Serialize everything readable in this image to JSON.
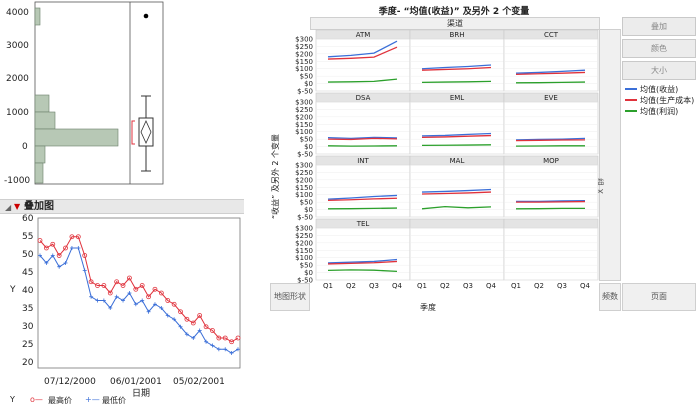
{
  "distribution": {
    "y_ticks": [
      "4000",
      "3000",
      "2000",
      "1000",
      "0",
      "-1000"
    ]
  },
  "outline": {
    "title": "叠加图"
  },
  "overlay": {
    "y_axis_label": "Y",
    "x_axis_label": "日期",
    "y_ticks": [
      "60",
      "55",
      "50",
      "45",
      "40",
      "35",
      "30",
      "25",
      "20"
    ],
    "x_ticks": [
      "07/12/2000",
      "06/01/2001",
      "05/02/2001"
    ],
    "y_variable": "Y",
    "legend": [
      {
        "label": "最高价",
        "marker": "o",
        "color": "#e0323c"
      },
      {
        "label": "最低价",
        "marker": "+",
        "color": "#3b6fd8"
      }
    ]
  },
  "graph_builder": {
    "title": "季度- “均值(收益)” 及另外 2 个变量",
    "group_top_label": "渠道",
    "y_axis_label": "“收益” 及另外 2 个变量",
    "x_axis_label": "季度",
    "group_right_label": "组 X",
    "y_ticks": [
      "$300",
      "$250",
      "$200",
      "$150",
      "$100",
      "$50",
      "$0",
      "$-50"
    ],
    "x_ticks": [
      "Q1",
      "Q2",
      "Q3",
      "Q4"
    ],
    "panels": [
      "ATM",
      "BRH",
      "CCT",
      "DSA",
      "EML",
      "EVE",
      "INT",
      "MAL",
      "MOP",
      "TEL"
    ],
    "map_shape": "地图形状",
    "freq": "频数",
    "page": "页面",
    "buttons": [
      "叠加",
      "颜色",
      "大小"
    ],
    "legend": [
      {
        "label": "均值(收益)",
        "color": "#3b6fd8"
      },
      {
        "label": "均值(生产成本)",
        "color": "#e0323c"
      },
      {
        "label": "均值(利润)",
        "color": "#2ca02c"
      }
    ]
  },
  "chart_data": {
    "type": "line",
    "title": "季度- “均值(收益)” 及另外 2 个变量",
    "x": [
      "Q1",
      "Q2",
      "Q3",
      "Q4"
    ],
    "ylabel": "“收益” 及另外 2 个变量",
    "xlabel": "季度",
    "ylim": [
      -50,
      300
    ],
    "panels": [
      {
        "name": "ATM",
        "series": [
          {
            "name": "均值(收益)",
            "values": [
              180,
              190,
              205,
              285
            ]
          },
          {
            "name": "均值(生产成本)",
            "values": [
              165,
              170,
              178,
              245
            ]
          },
          {
            "name": "均值(利润)",
            "values": [
              10,
              12,
              15,
              30
            ]
          }
        ]
      },
      {
        "name": "BRH",
        "series": [
          {
            "name": "均值(收益)",
            "values": [
              100,
              108,
              115,
              125
            ]
          },
          {
            "name": "均值(生产成本)",
            "values": [
              90,
              95,
              100,
              108
            ]
          },
          {
            "name": "均值(利润)",
            "values": [
              8,
              10,
              12,
              15
            ]
          }
        ]
      },
      {
        "name": "CCT",
        "series": [
          {
            "name": "均值(收益)",
            "values": [
              70,
              75,
              82,
              90
            ]
          },
          {
            "name": "均值(生产成本)",
            "values": [
              62,
              66,
              70,
              75
            ]
          },
          {
            "name": "均值(利润)",
            "values": [
              5,
              6,
              8,
              10
            ]
          }
        ]
      },
      {
        "name": "DSA",
        "series": [
          {
            "name": "均值(收益)",
            "values": [
              60,
              55,
              62,
              58
            ]
          },
          {
            "name": "均值(生产成本)",
            "values": [
              50,
              48,
              55,
              52
            ]
          },
          {
            "name": "均值(利润)",
            "values": [
              5,
              3,
              4,
              5
            ]
          }
        ]
      },
      {
        "name": "EML",
        "series": [
          {
            "name": "均值(收益)",
            "values": [
              72,
              75,
              82,
              88
            ]
          },
          {
            "name": "均值(生产成本)",
            "values": [
              62,
              65,
              70,
              74
            ]
          },
          {
            "name": "均值(利润)",
            "values": [
              8,
              9,
              10,
              12
            ]
          }
        ]
      },
      {
        "name": "EVE",
        "series": [
          {
            "name": "均值(收益)",
            "values": [
              45,
              48,
              50,
              55
            ]
          },
          {
            "name": "均值(生产成本)",
            "values": [
              40,
              42,
              44,
              45
            ]
          },
          {
            "name": "均值(利润)",
            "values": [
              3,
              4,
              5,
              5
            ]
          }
        ]
      },
      {
        "name": "INT",
        "series": [
          {
            "name": "均值(收益)",
            "values": [
              70,
              78,
              88,
              95
            ]
          },
          {
            "name": "均值(生产成本)",
            "values": [
              62,
              66,
              72,
              76
            ]
          },
          {
            "name": "均值(利润)",
            "values": [
              5,
              6,
              8,
              10
            ]
          }
        ]
      },
      {
        "name": "MAL",
        "series": [
          {
            "name": "均值(收益)",
            "values": [
              118,
              122,
              128,
              135
            ]
          },
          {
            "name": "均值(生产成本)",
            "values": [
              105,
              108,
              112,
              118
            ]
          },
          {
            "name": "均值(利润)",
            "values": [
              5,
              20,
              12,
              18
            ]
          }
        ]
      },
      {
        "name": "MOP",
        "series": [
          {
            "name": "均值(收益)",
            "values": [
              55,
              55,
              58,
              60
            ]
          },
          {
            "name": "均值(生产成本)",
            "values": [
              50,
              50,
              52,
              54
            ]
          },
          {
            "name": "均值(利润)",
            "values": [
              5,
              6,
              8,
              8
            ]
          }
        ]
      },
      {
        "name": "TEL",
        "series": [
          {
            "name": "均值(收益)",
            "values": [
              65,
              70,
              75,
              88
            ]
          },
          {
            "name": "均值(生产成本)",
            "values": [
              58,
              62,
              66,
              75
            ]
          },
          {
            "name": "均值(利润)",
            "values": [
              15,
              18,
              16,
              8
            ]
          }
        ]
      }
    ],
    "overlay_series": [
      {
        "name": "最高价",
        "values": [
          54,
          52,
          53,
          50,
          52,
          55,
          55,
          50,
          43,
          42,
          42,
          40,
          43,
          42,
          44,
          41,
          42,
          39,
          41,
          40,
          38,
          37,
          35,
          33,
          32,
          34,
          31,
          30,
          28,
          28,
          27,
          28
        ]
      },
      {
        "name": "最低价",
        "values": [
          50,
          48,
          50,
          47,
          48,
          52,
          52,
          46,
          39,
          38,
          38,
          36,
          39,
          38,
          40,
          37,
          38,
          35,
          37,
          36,
          34,
          33,
          31,
          29,
          28,
          30,
          27,
          26,
          25,
          25,
          24,
          25
        ]
      }
    ],
    "overlay_ylim": [
      20,
      60
    ]
  }
}
